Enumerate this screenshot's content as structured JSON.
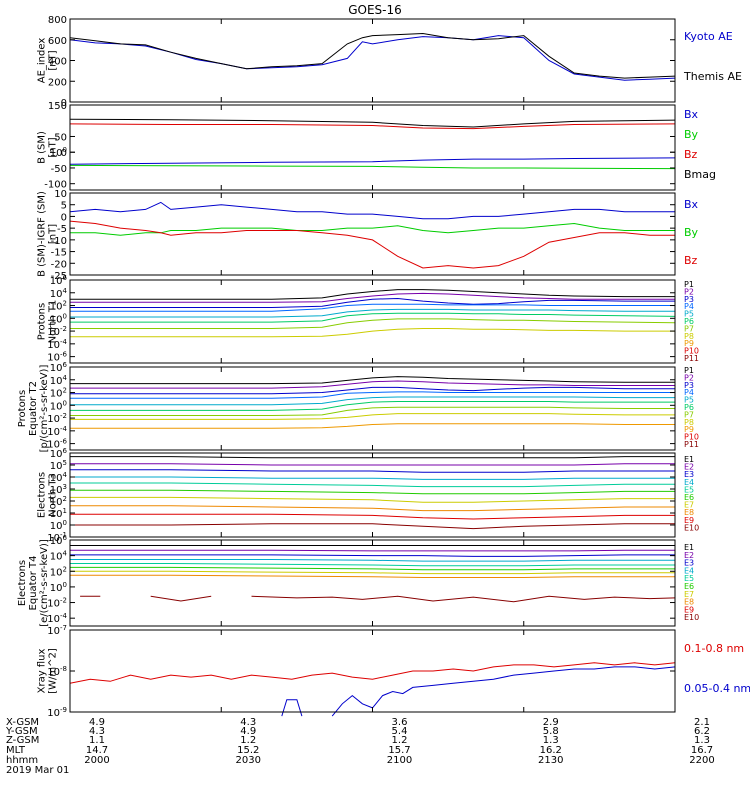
{
  "title": "GOES-16",
  "panels": [
    {
      "id": "ae",
      "ylabel": [
        "AE_index",
        "[nT]"
      ],
      "scale": "linear",
      "ylim": [
        0,
        800
      ],
      "ticks": [
        "0",
        "200",
        "400",
        "600",
        "800"
      ],
      "legend": [
        "Kyoto AE",
        "Themis AE"
      ]
    },
    {
      "id": "bsm",
      "ylabel": [
        "B (SM)",
        "[nT]"
      ],
      "scale": "linear",
      "ylim": [
        -120,
        150
      ],
      "ticks": [
        "-100",
        "-50",
        "0",
        "50",
        "100",
        "150"
      ],
      "legend": [
        "Bx",
        "By",
        "Bz",
        "Bmag"
      ]
    },
    {
      "id": "bigrf",
      "ylabel": [
        "B (SM)-IGRF (SM)",
        "[nT]"
      ],
      "scale": "linear",
      "ylim": [
        -25,
        10
      ],
      "ticks": [
        "-25",
        "-20",
        "-15",
        "-10",
        "-5",
        "0",
        "5",
        "10"
      ],
      "legend": [
        "Bx",
        "By",
        "Bz"
      ]
    },
    {
      "id": "pt1",
      "ylabel": [
        "Protons",
        "North T1"
      ],
      "scale": "log",
      "ylim": [
        -7,
        6
      ],
      "ticks": [
        "10-6",
        "10-4",
        "10-2",
        "100",
        "102",
        "104",
        "106"
      ],
      "legend": [
        "P1",
        "P2",
        "P3",
        "P4",
        "P5",
        "P6",
        "P7",
        "P8",
        "P9",
        "P10",
        "P11"
      ]
    },
    {
      "id": "pt2",
      "ylabel": [
        "Protons",
        "Equator T2",
        "[p/(cm²-s-sr-keV)]"
      ],
      "scale": "log",
      "ylim": [
        -7,
        6
      ],
      "ticks": [
        "10-6",
        "10-4",
        "10-2",
        "100",
        "102",
        "104",
        "106"
      ],
      "legend": [
        "P1",
        "P2",
        "P3",
        "P4",
        "P5",
        "P6",
        "P7",
        "P8",
        "P9",
        "P10",
        "P11"
      ]
    },
    {
      "id": "et3",
      "ylabel": [
        "Electrons",
        "North T3"
      ],
      "scale": "log",
      "ylim": [
        -1,
        6
      ],
      "ticks": [
        "10-1",
        "100",
        "101",
        "102",
        "103",
        "104",
        "105",
        "106"
      ],
      "legend": [
        "E1",
        "E2",
        "E3",
        "E4",
        "E5",
        "E6",
        "E7",
        "E8",
        "E9",
        "E10"
      ]
    },
    {
      "id": "et4",
      "ylabel": [
        "Electrons",
        "Equator T4",
        "[e/(cm²-s-sr-keV)]"
      ],
      "scale": "log",
      "ylim": [
        -5,
        6
      ],
      "ticks": [
        "10-4",
        "10-2",
        "100",
        "102",
        "104",
        "106"
      ],
      "legend": [
        "E1",
        "E2",
        "E3",
        "E4",
        "E5",
        "E6",
        "E7",
        "E8",
        "E9",
        "E10"
      ]
    },
    {
      "id": "xray",
      "ylabel": [
        "Xray flux",
        "[W/m^2]"
      ],
      "scale": "log",
      "ylim": [
        -9,
        -7
      ],
      "ticks": [
        "10-9",
        "10-8",
        "10-7"
      ],
      "legend": [
        "0.1-0.8 nm",
        "0.05-0.4 nm"
      ]
    }
  ],
  "bottom_axis": {
    "row_labels": [
      "X-GSM",
      "Y-GSM",
      "Z-GSM",
      "MLT",
      "hhmm",
      "2019 Mar 01"
    ],
    "columns": [
      {
        "values": [
          "4.9",
          "4.3",
          "1.1",
          "14.7",
          "2000"
        ]
      },
      {
        "values": [
          "4.3",
          "4.9",
          "1.2",
          "15.2",
          "2030"
        ]
      },
      {
        "values": [
          "3.6",
          "5.4",
          "1.2",
          "15.7",
          "2100"
        ]
      },
      {
        "values": [
          "2.9",
          "5.8",
          "1.3",
          "16.2",
          "2130"
        ]
      },
      {
        "values": [
          "2.1",
          "6.2",
          "1.3",
          "16.7",
          "2200"
        ]
      }
    ]
  },
  "chart_data": {
    "type": "line",
    "x_unit": "minutes after 2000 UT",
    "xlim": [
      0,
      120
    ],
    "x_ticks": [
      0,
      30,
      60,
      90,
      120
    ],
    "colors": {
      "kyoto": "#0000cc",
      "themis": "#000000",
      "bx": "#0000cc",
      "by": "#00cc00",
      "bz": "#dd0000",
      "bmag": "#000000",
      "p": [
        "#000000",
        "#7700aa",
        "#0000cc",
        "#0066ff",
        "#00aacc",
        "#00cc66",
        "#88cc00",
        "#cccc00",
        "#ee9900",
        "#dd0000",
        "#880000"
      ],
      "e": [
        "#000000",
        "#7700aa",
        "#0000cc",
        "#00aacc",
        "#00cc99",
        "#22cc00",
        "#cccc00",
        "#ee8800",
        "#dd0000",
        "#880000"
      ],
      "xlong": "#dd0000",
      "xshort": "#0000cc"
    },
    "ae": {
      "x": [
        0,
        5,
        10,
        15,
        20,
        25,
        30,
        35,
        40,
        45,
        50,
        55,
        58,
        60,
        65,
        70,
        75,
        80,
        85,
        90,
        95,
        100,
        105,
        110,
        115,
        120
      ],
      "kyoto": [
        600,
        570,
        560,
        540,
        480,
        410,
        370,
        320,
        330,
        340,
        360,
        420,
        580,
        560,
        600,
        630,
        620,
        600,
        640,
        620,
        400,
        270,
        240,
        210,
        220,
        230
      ],
      "themis": [
        620,
        590,
        560,
        550,
        480,
        420,
        370,
        320,
        340,
        350,
        370,
        560,
        620,
        640,
        650,
        660,
        620,
        600,
        610,
        640,
        440,
        280,
        250,
        230,
        240,
        250
      ]
    },
    "b_sm": {
      "x": [
        0,
        20,
        40,
        60,
        70,
        80,
        90,
        100,
        120
      ],
      "bmag": [
        105,
        103,
        100,
        95,
        85,
        80,
        90,
        98,
        102
      ],
      "bz": [
        90,
        88,
        88,
        85,
        77,
        75,
        82,
        88,
        90
      ],
      "bx": [
        -38,
        -35,
        -32,
        -30,
        -25,
        -22,
        -22,
        -20,
        -18
      ],
      "by": [
        -42,
        -43,
        -44,
        -45,
        -48,
        -50,
        -50,
        -51,
        -52
      ]
    },
    "b_igrf": {
      "x": [
        0,
        5,
        10,
        15,
        18,
        20,
        25,
        30,
        35,
        40,
        45,
        50,
        55,
        60,
        65,
        70,
        75,
        80,
        85,
        90,
        95,
        100,
        105,
        110,
        115,
        120
      ],
      "bx": [
        2,
        3,
        2,
        3,
        6,
        3,
        4,
        5,
        4,
        3,
        2,
        2,
        1,
        1,
        0,
        -1,
        -1,
        0,
        0,
        1,
        2,
        3,
        3,
        2,
        2,
        2
      ],
      "by": [
        -7,
        -7,
        -8,
        -7,
        -7,
        -6,
        -6,
        -5,
        -5,
        -5,
        -6,
        -6,
        -5,
        -5,
        -4,
        -6,
        -7,
        -6,
        -5,
        -5,
        -4,
        -3,
        -5,
        -6,
        -6,
        -6
      ],
      "bz": [
        -2,
        -3,
        -5,
        -6,
        -7,
        -8,
        -7,
        -7,
        -6,
        -6,
        -6,
        -7,
        -8,
        -10,
        -17,
        -22,
        -21,
        -22,
        -21,
        -17,
        -11,
        -9,
        -7,
        -7,
        -8,
        -8
      ]
    },
    "protons_t1": {
      "x": [
        0,
        20,
        40,
        50,
        55,
        60,
        65,
        70,
        75,
        80,
        85,
        90,
        95,
        100,
        110,
        120
      ],
      "series": [
        [
          3.0,
          3.0,
          3.0,
          3.2,
          3.8,
          4.2,
          4.5,
          4.5,
          4.4,
          4.2,
          4.0,
          3.8,
          3.6,
          3.5,
          3.4,
          3.4
        ],
        [
          2.5,
          2.5,
          2.5,
          2.6,
          3.1,
          3.5,
          3.8,
          3.9,
          3.8,
          3.6,
          3.4,
          3.2,
          3.1,
          3.0,
          3.0,
          3.0
        ],
        [
          1.7,
          1.7,
          1.7,
          1.9,
          2.5,
          3.0,
          3.1,
          2.7,
          2.4,
          2.2,
          2.3,
          2.6,
          2.8,
          2.8,
          2.7,
          2.7
        ],
        [
          1.1,
          1.1,
          1.1,
          1.5,
          2.0,
          2.2,
          2.2,
          2.2,
          2.1,
          2.1,
          2.1,
          2.1,
          2.0,
          2.0,
          2.0,
          2.0
        ],
        [
          0.2,
          0.2,
          0.2,
          0.4,
          1.0,
          1.3,
          1.4,
          1.4,
          1.4,
          1.3,
          1.3,
          1.3,
          1.3,
          1.2,
          1.1,
          1.1
        ],
        [
          -0.6,
          -0.6,
          -0.6,
          -0.4,
          0.4,
          0.7,
          0.8,
          0.8,
          0.8,
          0.7,
          0.7,
          0.6,
          0.6,
          0.5,
          0.4,
          0.3
        ],
        [
          -1.6,
          -1.6,
          -1.6,
          -1.4,
          -0.7,
          -0.3,
          -0.1,
          -0.1,
          -0.1,
          -0.2,
          -0.3,
          -0.3,
          -0.4,
          -0.5,
          -0.6,
          -0.7
        ],
        [
          -2.9,
          -2.9,
          -2.9,
          -2.8,
          -2.5,
          -2.0,
          -1.7,
          -1.6,
          -1.6,
          -1.7,
          -1.7,
          -1.8,
          -1.9,
          -1.9,
          -2.0,
          -2.0
        ]
      ]
    },
    "protons_t2": {
      "x": [
        0,
        20,
        40,
        50,
        55,
        60,
        65,
        70,
        75,
        80,
        85,
        90,
        95,
        100,
        110,
        120
      ],
      "series": [
        [
          3.4,
          3.4,
          3.4,
          3.5,
          3.9,
          4.3,
          4.5,
          4.4,
          4.2,
          4.1,
          4.0,
          3.9,
          3.8,
          3.7,
          3.6,
          3.6
        ],
        [
          2.7,
          2.7,
          2.7,
          2.9,
          3.3,
          3.7,
          3.8,
          3.7,
          3.5,
          3.4,
          3.3,
          3.2,
          3.2,
          3.1,
          3.1,
          3.1
        ],
        [
          1.8,
          1.8,
          1.8,
          2.0,
          2.4,
          2.8,
          2.8,
          2.6,
          2.4,
          2.3,
          2.5,
          2.7,
          2.8,
          2.8,
          2.6,
          2.6
        ],
        [
          1.1,
          1.1,
          1.1,
          1.3,
          1.9,
          2.0,
          2.1,
          2.1,
          2.0,
          2.0,
          2.0,
          2.0,
          2.0,
          2.0,
          2.0,
          2.0
        ],
        [
          0.1,
          0.1,
          0.1,
          0.3,
          0.9,
          1.2,
          1.3,
          1.3,
          1.3,
          1.3,
          1.3,
          1.3,
          1.3,
          1.3,
          1.2,
          1.2
        ],
        [
          -0.8,
          -0.8,
          -0.8,
          -0.6,
          0.1,
          0.5,
          0.6,
          0.6,
          0.6,
          0.6,
          0.6,
          0.6,
          0.6,
          0.5,
          0.5,
          0.5
        ],
        [
          -1.6,
          -1.6,
          -1.6,
          -1.5,
          -0.8,
          -0.4,
          -0.3,
          -0.3,
          -0.3,
          -0.3,
          -0.3,
          -0.3,
          -0.3,
          -0.4,
          -0.5,
          -0.5
        ],
        [
          -2.2,
          -2.2,
          -2.2,
          -2.1,
          -1.9,
          -1.5,
          -1.3,
          -1.3,
          -1.3,
          -1.3,
          -1.3,
          -1.3,
          -1.3,
          -1.4,
          -1.5,
          -1.5
        ],
        [
          -3.6,
          -3.6,
          -3.6,
          -3.5,
          -3.3,
          -3.0,
          -2.9,
          -2.9,
          -2.9,
          -2.9,
          -2.9,
          -2.9,
          -2.9,
          -2.9,
          -3.0,
          -3.0
        ]
      ]
    },
    "electrons_t3": {
      "x": [
        0,
        20,
        40,
        60,
        70,
        80,
        90,
        100,
        110,
        120
      ],
      "series": [
        [
          5.7,
          5.7,
          5.6,
          5.6,
          5.6,
          5.6,
          5.6,
          5.6,
          5.7,
          5.7
        ],
        [
          5.1,
          5.1,
          5.0,
          5.0,
          5.0,
          5.0,
          5.0,
          5.0,
          5.1,
          5.1
        ],
        [
          4.6,
          4.6,
          4.5,
          4.5,
          4.4,
          4.4,
          4.4,
          4.5,
          4.5,
          4.5
        ],
        [
          4.0,
          4.0,
          3.9,
          3.9,
          3.8,
          3.8,
          3.8,
          3.9,
          3.9,
          3.9
        ],
        [
          3.5,
          3.5,
          3.4,
          3.3,
          3.2,
          3.2,
          3.2,
          3.3,
          3.4,
          3.4
        ],
        [
          2.9,
          2.9,
          2.8,
          2.7,
          2.6,
          2.6,
          2.6,
          2.7,
          2.8,
          2.8
        ],
        [
          2.3,
          2.3,
          2.2,
          2.1,
          1.9,
          1.9,
          2.0,
          2.1,
          2.2,
          2.2
        ],
        [
          1.6,
          1.6,
          1.5,
          1.4,
          1.2,
          1.2,
          1.3,
          1.4,
          1.5,
          1.5
        ],
        [
          0.9,
          0.9,
          0.9,
          0.8,
          0.6,
          0.5,
          0.6,
          0.7,
          0.8,
          0.8
        ],
        [
          0.0,
          0.0,
          0.1,
          0.1,
          -0.1,
          -0.3,
          -0.1,
          0.0,
          0.1,
          0.1
        ]
      ]
    },
    "electrons_t4": {
      "x": [
        0,
        20,
        40,
        60,
        70,
        80,
        90,
        100,
        110,
        120
      ],
      "series": [
        [
          5.3,
          5.3,
          5.3,
          5.3,
          5.3,
          5.3,
          5.3,
          5.3,
          5.3,
          5.3
        ],
        [
          4.7,
          4.7,
          4.7,
          4.6,
          4.6,
          4.6,
          4.6,
          4.6,
          4.7,
          4.7
        ],
        [
          4.1,
          4.1,
          4.1,
          4.0,
          4.0,
          3.9,
          3.9,
          4.0,
          4.1,
          4.1
        ],
        [
          3.5,
          3.5,
          3.5,
          3.4,
          3.3,
          3.3,
          3.3,
          3.4,
          3.4,
          3.4
        ],
        [
          3.0,
          3.0,
          2.9,
          2.8,
          2.7,
          2.7,
          2.7,
          2.8,
          2.8,
          2.8
        ],
        [
          2.5,
          2.5,
          2.4,
          2.3,
          2.2,
          2.2,
          2.2,
          2.3,
          2.3,
          2.3
        ],
        [
          2.0,
          2.0,
          1.9,
          1.8,
          1.7,
          1.7,
          1.7,
          1.8,
          1.8,
          1.8
        ],
        [
          1.5,
          1.5,
          1.4,
          1.3,
          1.2,
          1.2,
          1.2,
          1.3,
          1.3,
          1.3
        ]
      ],
      "e10_segments": [
        {
          "x": [
            2,
            6
          ],
          "y": [
            -1.2,
            -1.2
          ]
        },
        {
          "x": [
            16,
            22,
            28
          ],
          "y": [
            -1.2,
            -1.8,
            -1.2
          ]
        },
        {
          "x": [
            36,
            45,
            52,
            58,
            65,
            72,
            80,
            88,
            95,
            102,
            108,
            115,
            120
          ],
          "y": [
            -1.2,
            -1.4,
            -1.3,
            -1.6,
            -1.2,
            -1.8,
            -1.3,
            -1.9,
            -1.2,
            -1.6,
            -1.3,
            -1.5,
            -1.4
          ]
        }
      ]
    },
    "xray": {
      "x": [
        0,
        4,
        8,
        12,
        16,
        20,
        24,
        28,
        32,
        36,
        40,
        44,
        48,
        52,
        56,
        60,
        64,
        68,
        72,
        76,
        80,
        84,
        88,
        92,
        96,
        100,
        104,
        108,
        112,
        116,
        120
      ],
      "long": [
        -8.3,
        -8.2,
        -8.25,
        -8.1,
        -8.2,
        -8.1,
        -8.15,
        -8.1,
        -8.2,
        -8.1,
        -8.15,
        -8.2,
        -8.1,
        -8.05,
        -8.15,
        -8.2,
        -8.1,
        -8.0,
        -8.0,
        -7.95,
        -8.0,
        -7.9,
        -7.85,
        -7.85,
        -7.9,
        -7.85,
        -7.8,
        -7.85,
        -7.8,
        -7.85,
        -7.8
      ],
      "short_segments": [
        {
          "x": [
            42,
            43,
            45,
            46
          ],
          "y": [
            -9.1,
            -8.7,
            -8.7,
            -9.1
          ]
        },
        {
          "x": [
            52,
            54,
            56,
            58,
            60,
            62,
            64,
            66,
            68,
            72,
            76,
            80,
            84,
            88,
            92,
            96,
            100,
            104,
            108,
            112,
            116,
            120
          ],
          "y": [
            -9.1,
            -8.8,
            -8.6,
            -8.8,
            -8.9,
            -8.6,
            -8.5,
            -8.55,
            -8.4,
            -8.35,
            -8.3,
            -8.25,
            -8.2,
            -8.1,
            -8.05,
            -8.0,
            -7.95,
            -7.95,
            -7.9,
            -7.9,
            -7.95,
            -7.9
          ]
        }
      ]
    }
  }
}
